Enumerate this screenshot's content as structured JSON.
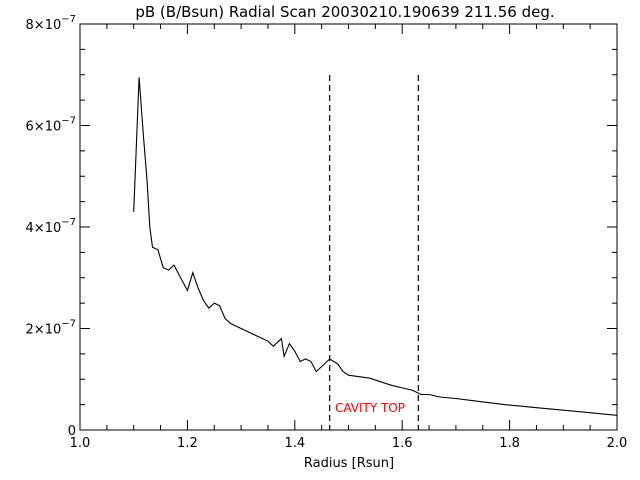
{
  "chart_data": {
    "type": "line",
    "title": "pB (B/Bsun) Radial Scan 20030210.190639 211.56 deg.",
    "xlabel": "Radius [Rsun]",
    "ylabel": "",
    "xlim": [
      1.0,
      2.0
    ],
    "ylim": [
      0,
      8e-07
    ],
    "grid": false,
    "x_ticks": [
      {
        "value": 1.0,
        "label": "1.0"
      },
      {
        "value": 1.2,
        "label": "1.2"
      },
      {
        "value": 1.4,
        "label": "1.4"
      },
      {
        "value": 1.6,
        "label": "1.6"
      },
      {
        "value": 1.8,
        "label": "1.8"
      },
      {
        "value": 2.0,
        "label": "2.0"
      }
    ],
    "y_ticks": [
      {
        "value": 0,
        "mant": "0",
        "exp": ""
      },
      {
        "value": 2e-07,
        "mant": "2×10",
        "exp": "−7"
      },
      {
        "value": 4e-07,
        "mant": "4×10",
        "exp": "−7"
      },
      {
        "value": 6e-07,
        "mant": "6×10",
        "exp": "−7"
      },
      {
        "value": 8e-07,
        "mant": "8×10",
        "exp": "−7"
      }
    ],
    "series": [
      {
        "color": "#000000",
        "x": [
          1.1,
          1.11,
          1.118,
          1.125,
          1.13,
          1.135,
          1.145,
          1.155,
          1.165,
          1.175,
          1.185,
          1.195,
          1.2,
          1.21,
          1.22,
          1.23,
          1.24,
          1.25,
          1.26,
          1.27,
          1.28,
          1.29,
          1.3,
          1.31,
          1.32,
          1.33,
          1.34,
          1.35,
          1.36,
          1.37,
          1.375,
          1.38,
          1.39,
          1.4,
          1.41,
          1.42,
          1.43,
          1.44,
          1.45,
          1.465,
          1.48,
          1.49,
          1.5,
          1.52,
          1.54,
          1.56,
          1.58,
          1.6,
          1.62,
          1.635,
          1.65,
          1.67,
          1.7,
          1.73,
          1.76,
          1.79,
          1.82,
          1.85,
          1.88,
          1.91,
          1.94,
          1.97,
          2.0
        ],
        "y": [
          4.3e-07,
          6.95e-07,
          5.8e-07,
          4.9e-07,
          4e-07,
          3.6e-07,
          3.55e-07,
          3.2e-07,
          3.15e-07,
          3.25e-07,
          3.05e-07,
          2.85e-07,
          2.75e-07,
          3.1e-07,
          2.8e-07,
          2.55e-07,
          2.4e-07,
          2.5e-07,
          2.45e-07,
          2.2e-07,
          2.1e-07,
          2.05e-07,
          2e-07,
          1.95e-07,
          1.9e-07,
          1.85e-07,
          1.8e-07,
          1.75e-07,
          1.65e-07,
          1.75e-07,
          1.8e-07,
          1.45e-07,
          1.7e-07,
          1.55e-07,
          1.35e-07,
          1.4e-07,
          1.35e-07,
          1.15e-07,
          1.25e-07,
          1.4e-07,
          1.3e-07,
          1.15e-07,
          1.08e-07,
          1.05e-07,
          1.02e-07,
          9.5e-08,
          8.8e-08,
          8.3e-08,
          7.8e-08,
          7e-08,
          7e-08,
          6.5e-08,
          6.2e-08,
          5.8e-08,
          5.4e-08,
          5e-08,
          4.7e-08,
          4.4e-08,
          4.1e-08,
          3.8e-08,
          3.5e-08,
          3.2e-08,
          2.9e-08
        ]
      }
    ],
    "vlines": [
      {
        "x": 1.465,
        "style": "dashed"
      },
      {
        "x": 1.63,
        "style": "dashed"
      }
    ],
    "annotations": [
      {
        "text": "CAVITY TOP",
        "x": 1.54,
        "y": 3.5e-08,
        "color": "#ff0000"
      }
    ]
  }
}
